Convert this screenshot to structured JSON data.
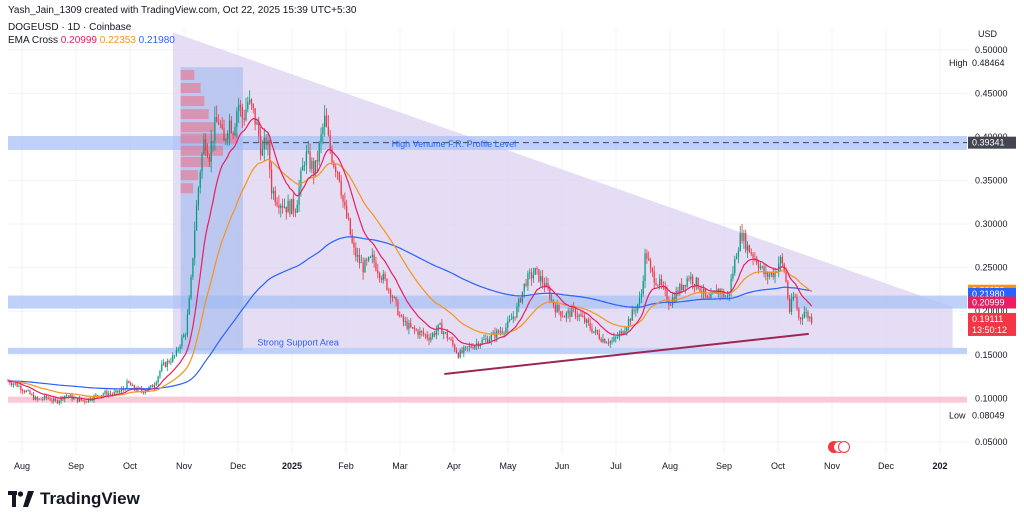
{
  "header": {
    "credit": "Yash_Jain_1309 created with TradingView.com, Oct 22, 2025 15:39 UTC+5:30",
    "symbol": "DOGEUSD · 1D · Coinbase",
    "indicator_name": "EMA Cross",
    "ema_fast_value": "0.20999",
    "ema_mid_value": "0.22353",
    "ema_slow_value": "0.21980"
  },
  "brand": {
    "name": "TradingView"
  },
  "colors": {
    "up": "#089981",
    "down": "#f23645",
    "ema_fast": "#e91e63",
    "ema_mid": "#f7931a",
    "ema_slow": "#2962ff",
    "triangle_fill": "#d9cff0",
    "zone_blue": "#a9c1f5",
    "zone_pink": "#f8b9c8",
    "trendline": "#9c2754",
    "volume_profile": "#f06a80"
  },
  "chart_data": {
    "type": "candlestick",
    "currency": "USD",
    "y_ticks": [
      "0.50000",
      "0.45000",
      "0.40000",
      "0.35000",
      "0.30000",
      "0.25000",
      "0.20000",
      "0.15000",
      "0.10000",
      "0.05000"
    ],
    "x_ticks": [
      "Aug",
      "Sep",
      "Oct",
      "Nov",
      "Dec",
      "2025",
      "Feb",
      "Mar",
      "Apr",
      "May",
      "Jun",
      "Jul",
      "Aug",
      "Sep",
      "Oct",
      "Nov",
      "Dec",
      "202"
    ],
    "ylim": [
      0.035,
      0.525
    ],
    "price_labels": [
      {
        "name": "High",
        "value": "0.48464",
        "price": 0.48464,
        "type": "high"
      },
      {
        "name": "",
        "value": "0.39341",
        "price": 0.39341,
        "type": "level"
      },
      {
        "name": "",
        "value": "0.22353",
        "price": 0.22353,
        "type": "ema_mid"
      },
      {
        "name": "",
        "value": "0.21980",
        "price": 0.2198,
        "type": "ema_slow"
      },
      {
        "name": "",
        "value": "0.20999",
        "price": 0.20999,
        "type": "ema_fast"
      },
      {
        "name": "",
        "value": "0.19111",
        "price": 0.19111,
        "type": "last"
      },
      {
        "name": "",
        "value": "13:50:12",
        "price": 0.1785,
        "type": "countdown"
      },
      {
        "name": "Low",
        "value": "0.08049",
        "price": 0.08049,
        "type": "low"
      }
    ],
    "annotations": [
      {
        "text": "High Venume F.R. Profile Level",
        "price": 0.393,
        "x_pos": 0.4
      },
      {
        "text": "Strong Support Area",
        "price": 0.165,
        "x_pos": 0.26
      }
    ],
    "zones": [
      {
        "name": "high-volume-zone",
        "y_low": 0.385,
        "y_high": 0.401,
        "color": "zone_blue"
      },
      {
        "name": "resistance-zone",
        "y_low": 0.203,
        "y_high": 0.218,
        "color": "zone_blue"
      },
      {
        "name": "support-zone",
        "y_low": 0.151,
        "y_high": 0.158,
        "color": "zone_blue"
      },
      {
        "name": "low-zone",
        "y_low": 0.095,
        "y_high": 0.102,
        "color": "zone_pink"
      }
    ],
    "dashed_level": 0.39341,
    "triangle": [
      [
        0.172,
        0.52
      ],
      [
        0.985,
        0.205
      ],
      [
        0.985,
        0.158
      ],
      [
        0.172,
        0.158
      ]
    ],
    "trendline": [
      [
        0.455,
        0.128
      ],
      [
        0.835,
        0.174
      ]
    ],
    "volume_profile_box": {
      "x0": 0.18,
      "x1": 0.245,
      "y_low": 0.155,
      "y_high": 0.48
    },
    "volume_profile_bars": [
      {
        "y": 0.47,
        "w": 0.22
      },
      {
        "y": 0.455,
        "w": 0.32
      },
      {
        "y": 0.44,
        "w": 0.38
      },
      {
        "y": 0.425,
        "w": 0.45
      },
      {
        "y": 0.41,
        "w": 0.55
      },
      {
        "y": 0.397,
        "w": 0.92
      },
      {
        "y": 0.383,
        "w": 0.68
      },
      {
        "y": 0.37,
        "w": 0.48
      },
      {
        "y": 0.355,
        "w": 0.28
      },
      {
        "y": 0.34,
        "w": 0.2
      }
    ],
    "price_anchors": [
      [
        0,
        0.12
      ],
      [
        0.01,
        0.115
      ],
      [
        0.02,
        0.107
      ],
      [
        0.03,
        0.098
      ],
      [
        0.04,
        0.101
      ],
      [
        0.05,
        0.096
      ],
      [
        0.06,
        0.104
      ],
      [
        0.07,
        0.099
      ],
      [
        0.08,
        0.097
      ],
      [
        0.09,
        0.102
      ],
      [
        0.1,
        0.106
      ],
      [
        0.11,
        0.105
      ],
      [
        0.12,
        0.11
      ],
      [
        0.125,
        0.118
      ],
      [
        0.13,
        0.112
      ],
      [
        0.14,
        0.108
      ],
      [
        0.15,
        0.113
      ],
      [
        0.155,
        0.122
      ],
      [
        0.16,
        0.136
      ],
      [
        0.165,
        0.14
      ],
      [
        0.17,
        0.145
      ],
      [
        0.175,
        0.15
      ],
      [
        0.18,
        0.165
      ],
      [
        0.185,
        0.175
      ],
      [
        0.19,
        0.22
      ],
      [
        0.195,
        0.3
      ],
      [
        0.2,
        0.36
      ],
      [
        0.205,
        0.4
      ],
      [
        0.21,
        0.38
      ],
      [
        0.215,
        0.41
      ],
      [
        0.22,
        0.42
      ],
      [
        0.225,
        0.39
      ],
      [
        0.23,
        0.42
      ],
      [
        0.235,
        0.41
      ],
      [
        0.24,
        0.44
      ],
      [
        0.245,
        0.42
      ],
      [
        0.25,
        0.44
      ],
      [
        0.255,
        0.43
      ],
      [
        0.26,
        0.41
      ],
      [
        0.265,
        0.38
      ],
      [
        0.27,
        0.4
      ],
      [
        0.275,
        0.34
      ],
      [
        0.28,
        0.33
      ],
      [
        0.29,
        0.32
      ],
      [
        0.3,
        0.32
      ],
      [
        0.31,
        0.38
      ],
      [
        0.32,
        0.36
      ],
      [
        0.33,
        0.42
      ],
      [
        0.335,
        0.39
      ],
      [
        0.34,
        0.37
      ],
      [
        0.345,
        0.36
      ],
      [
        0.35,
        0.32
      ],
      [
        0.355,
        0.3
      ],
      [
        0.36,
        0.27
      ],
      [
        0.37,
        0.25
      ],
      [
        0.38,
        0.26
      ],
      [
        0.39,
        0.24
      ],
      [
        0.4,
        0.22
      ],
      [
        0.41,
        0.19
      ],
      [
        0.42,
        0.18
      ],
      [
        0.43,
        0.175
      ],
      [
        0.44,
        0.17
      ],
      [
        0.45,
        0.182
      ],
      [
        0.46,
        0.168
      ],
      [
        0.47,
        0.15
      ],
      [
        0.48,
        0.158
      ],
      [
        0.49,
        0.164
      ],
      [
        0.5,
        0.168
      ],
      [
        0.51,
        0.175
      ],
      [
        0.52,
        0.182
      ],
      [
        0.53,
        0.2
      ],
      [
        0.54,
        0.235
      ],
      [
        0.55,
        0.245
      ],
      [
        0.56,
        0.23
      ],
      [
        0.57,
        0.205
      ],
      [
        0.58,
        0.195
      ],
      [
        0.59,
        0.2
      ],
      [
        0.6,
        0.19
      ],
      [
        0.61,
        0.178
      ],
      [
        0.62,
        0.168
      ],
      [
        0.63,
        0.165
      ],
      [
        0.64,
        0.175
      ],
      [
        0.65,
        0.195
      ],
      [
        0.66,
        0.215
      ],
      [
        0.665,
        0.27
      ],
      [
        0.67,
        0.245
      ],
      [
        0.68,
        0.23
      ],
      [
        0.69,
        0.21
      ],
      [
        0.7,
        0.225
      ],
      [
        0.71,
        0.24
      ],
      [
        0.72,
        0.23
      ],
      [
        0.73,
        0.21
      ],
      [
        0.74,
        0.225
      ],
      [
        0.75,
        0.215
      ],
      [
        0.755,
        0.24
      ],
      [
        0.76,
        0.27
      ],
      [
        0.765,
        0.29
      ],
      [
        0.77,
        0.275
      ],
      [
        0.78,
        0.26
      ],
      [
        0.79,
        0.24
      ],
      [
        0.8,
        0.245
      ],
      [
        0.805,
        0.26
      ],
      [
        0.81,
        0.245
      ],
      [
        0.815,
        0.2
      ],
      [
        0.82,
        0.22
      ],
      [
        0.825,
        0.19
      ],
      [
        0.83,
        0.2
      ],
      [
        0.835,
        0.193
      ],
      [
        0.838,
        0.191
      ]
    ]
  }
}
